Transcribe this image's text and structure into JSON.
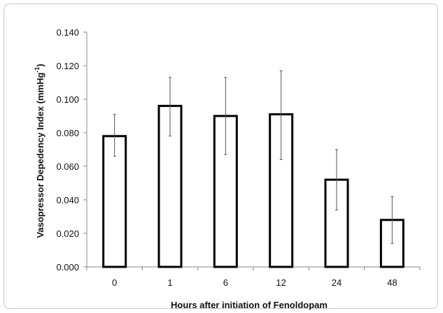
{
  "chart_data": {
    "type": "bar",
    "categories": [
      "0",
      "1",
      "6",
      "12",
      "24",
      "48"
    ],
    "values": [
      0.078,
      0.096,
      0.09,
      0.091,
      0.052,
      0.028
    ],
    "error_bars": {
      "upper": [
        0.091,
        0.113,
        0.113,
        0.117,
        0.07,
        0.042
      ],
      "lower": [
        0.066,
        0.078,
        0.067,
        0.064,
        0.034,
        0.014
      ]
    },
    "y_ticks": [
      "0.000",
      "0.020",
      "0.040",
      "0.060",
      "0.080",
      "0.100",
      "0.120",
      "0.140"
    ],
    "ylim": [
      0,
      0.14
    ],
    "xlabel": "Hours after initiation of Fenoldopam",
    "ylabel": "Vasopressor Depedency Index (mmHg",
    "ylabel_superscript": "-1",
    "ylabel_suffix": ")",
    "grid": false,
    "legend": "none",
    "colors": {
      "bar_fill": "#ffffff",
      "bar_stroke": "#000000",
      "axis": "#888888",
      "error": "#555555"
    }
  }
}
